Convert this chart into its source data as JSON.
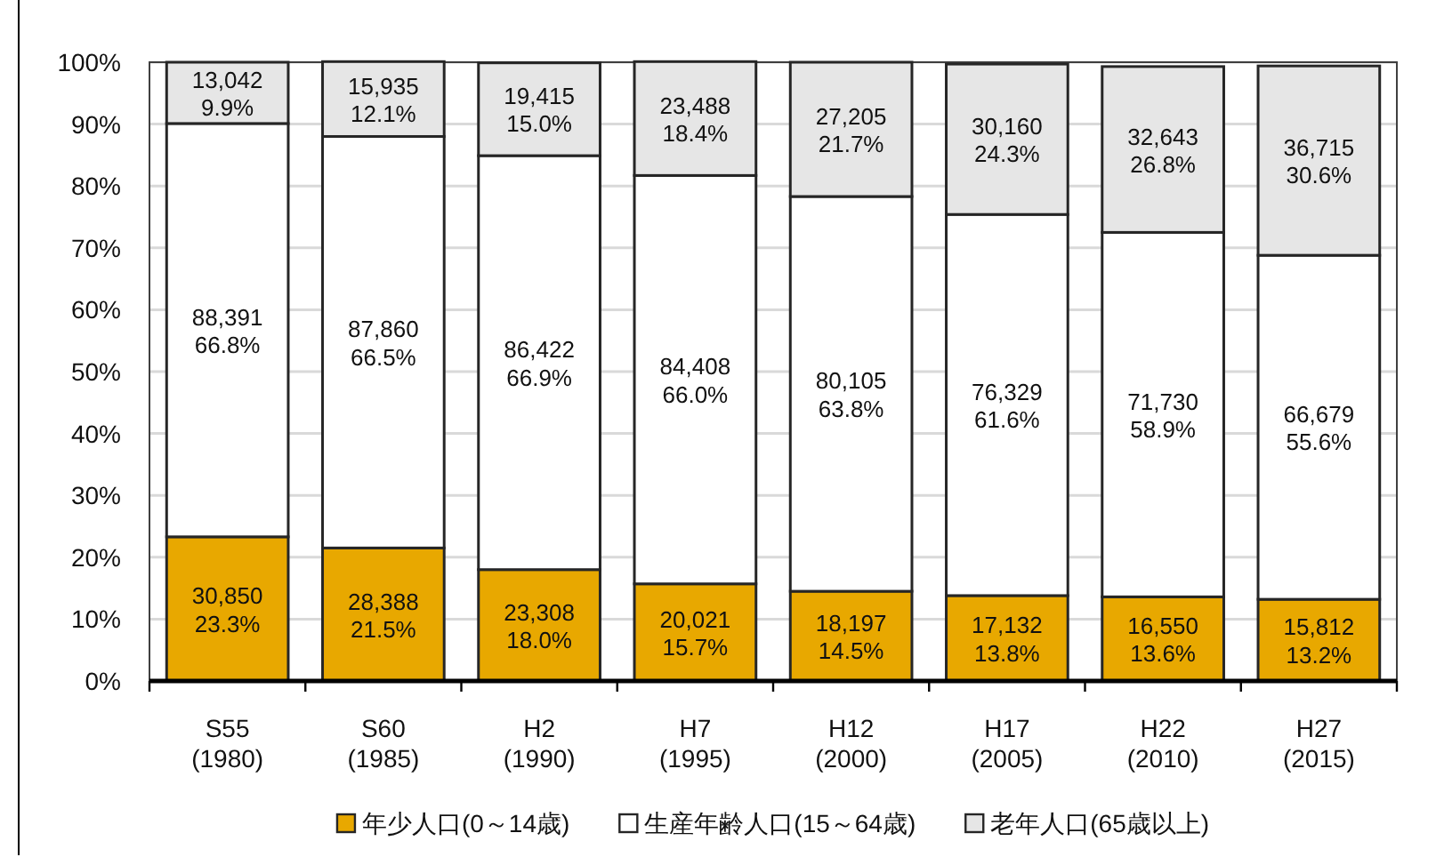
{
  "chart_data": {
    "type": "bar",
    "stacked": true,
    "categories": [
      "S55\n(1980)",
      "S60\n(1985)",
      "H2\n(1990)",
      "H7\n(1995)",
      "H12\n(2000)",
      "H17\n(2005)",
      "H22\n(2010)",
      "H27\n(2015)"
    ],
    "series": [
      {
        "name": "年少人口(0～14歳)",
        "color": "#e8a800",
        "values": [
          23.3,
          21.5,
          18.0,
          15.7,
          14.5,
          13.8,
          13.6,
          13.2
        ],
        "value_labels": [
          "30,850\n23.3%",
          "28,388\n21.5%",
          "23,308\n18.0%",
          "20,021\n15.7%",
          "18,197\n14.5%",
          "17,132\n13.8%",
          "16,550\n13.6%",
          "15,812\n13.2%"
        ]
      },
      {
        "name": "生産年齢人口(15～64歳)",
        "color": "#ffffff",
        "values": [
          66.8,
          66.5,
          66.9,
          66.0,
          63.8,
          61.6,
          58.9,
          55.6
        ],
        "value_labels": [
          "88,391\n66.8%",
          "87,860\n66.5%",
          "86,422\n66.9%",
          "84,408\n66.0%",
          "80,105\n63.8%",
          "76,329\n61.6%",
          "71,730\n58.9%",
          "66,679\n55.6%"
        ]
      },
      {
        "name": "老年人口(65歳以上)",
        "color": "#e6e6e6",
        "values": [
          9.9,
          12.1,
          15.0,
          18.4,
          21.7,
          24.3,
          26.8,
          30.6
        ],
        "value_labels": [
          "13,042\n9.9%",
          "15,935\n12.1%",
          "19,415\n15.0%",
          "23,488\n18.4%",
          "27,205\n21.7%",
          "30,160\n24.3%",
          "32,643\n26.8%",
          "36,715\n30.6%"
        ]
      }
    ],
    "ylim": [
      0,
      100
    ],
    "yticks": [
      {
        "value": 0,
        "label": "0%"
      },
      {
        "value": 10,
        "label": "10%"
      },
      {
        "value": 20,
        "label": "20%"
      },
      {
        "value": 30,
        "label": "30%"
      },
      {
        "value": 40,
        "label": "40%"
      },
      {
        "value": 50,
        "label": "50%"
      },
      {
        "value": 60,
        "label": "60%"
      },
      {
        "value": 70,
        "label": "70%"
      },
      {
        "value": 80,
        "label": "80%"
      },
      {
        "value": 90,
        "label": "90%"
      },
      {
        "value": 100,
        "label": "100%"
      }
    ],
    "grid": "y",
    "legend": "bottom"
  }
}
